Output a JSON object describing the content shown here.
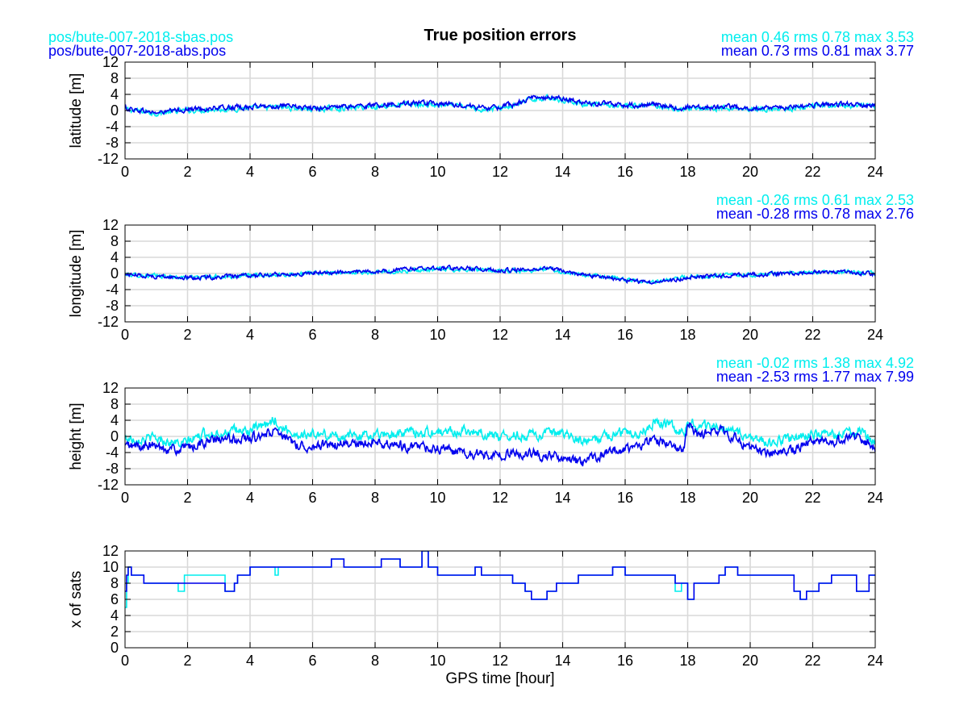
{
  "header": {
    "title": "True position errors",
    "file_sbas": "pos/bute-007-2018-sbas.pos",
    "file_abs": "pos/bute-007-2018-abs.pos"
  },
  "colors": {
    "sbas": "#00eeee",
    "abs": "#0000ee",
    "grid": "#d9d9d9",
    "axis": "#000000"
  },
  "chart_data": [
    {
      "type": "line",
      "ylabel": "latitude [m]",
      "xlim": [
        0,
        24
      ],
      "ylim": [
        -12,
        12
      ],
      "xticks": [
        0,
        2,
        4,
        6,
        8,
        10,
        12,
        14,
        16,
        18,
        20,
        22,
        24
      ],
      "yticks": [
        -12,
        -8,
        -4,
        0,
        4,
        8,
        12
      ],
      "grid": true,
      "stats": [
        {
          "text": "mean 0.46 rms 0.78 max 3.53",
          "series": "sbas"
        },
        {
          "text": "mean 0.73 rms 0.81 max 3.77",
          "series": "abs"
        }
      ],
      "series": [
        {
          "key": "sbas",
          "noise": 0.5,
          "x": [
            0,
            0.5,
            1,
            2,
            3,
            4,
            5,
            6,
            7,
            8,
            9,
            10,
            11,
            11.5,
            12,
            12.5,
            13,
            13.5,
            14,
            14.5,
            15,
            16,
            17,
            17.8,
            18,
            19,
            20,
            21,
            21.5,
            22,
            23,
            24
          ],
          "y": [
            0.3,
            -0.2,
            -0.7,
            0,
            0.3,
            0.6,
            0.8,
            0.3,
            0.6,
            1.0,
            1.5,
            1.3,
            0.9,
            0.2,
            0.6,
            1.3,
            2.8,
            3.2,
            2.7,
            1.8,
            1.4,
            1.0,
            1.3,
            0.2,
            0.6,
            0.5,
            0.5,
            0.2,
            0.6,
            1.0,
            1.2,
            1.1
          ]
        },
        {
          "key": "abs",
          "noise": 0.5,
          "x": [
            0,
            0.5,
            1,
            2,
            3,
            4,
            5,
            6,
            7,
            8,
            9,
            10,
            11,
            11.5,
            12,
            12.5,
            13,
            13.5,
            14,
            14.5,
            15,
            16,
            17,
            17.8,
            18,
            19,
            20,
            21,
            21.5,
            22,
            23,
            24
          ],
          "y": [
            0.6,
            0.0,
            -0.6,
            0.3,
            0.6,
            0.9,
            1.1,
            0.6,
            0.9,
            1.3,
            1.8,
            1.6,
            1.2,
            0.5,
            0.9,
            1.6,
            3.1,
            3.5,
            3.0,
            2.1,
            1.7,
            1.3,
            1.6,
            0.5,
            0.9,
            0.8,
            0.8,
            0.5,
            0.9,
            1.3,
            1.5,
            1.3
          ]
        }
      ]
    },
    {
      "type": "line",
      "ylabel": "longitude [m]",
      "xlim": [
        0,
        24
      ],
      "ylim": [
        -12,
        12
      ],
      "xticks": [
        0,
        2,
        4,
        6,
        8,
        10,
        12,
        14,
        16,
        18,
        20,
        22,
        24
      ],
      "yticks": [
        -12,
        -8,
        -4,
        0,
        4,
        8,
        12
      ],
      "grid": true,
      "stats": [
        {
          "text": "mean -0.26 rms 0.61 max 2.53",
          "series": "sbas"
        },
        {
          "text": "mean -0.28 rms 0.78 max 2.76",
          "series": "abs"
        }
      ],
      "series": [
        {
          "key": "sbas",
          "noise": 0.4,
          "x": [
            0,
            1,
            2,
            3,
            4,
            5,
            6,
            7,
            8,
            9,
            10,
            11,
            12,
            13,
            13.5,
            14,
            15,
            16,
            16.8,
            17.5,
            18,
            19,
            20,
            21,
            22,
            23,
            24
          ],
          "y": [
            -0.3,
            -0.6,
            -1.0,
            -0.8,
            -0.5,
            -0.2,
            0.0,
            0.2,
            0.2,
            0.6,
            1.0,
            1.0,
            0.6,
            0.8,
            1.2,
            0.3,
            -0.6,
            -1.5,
            -2.0,
            -1.6,
            -0.8,
            -0.5,
            -0.3,
            0.0,
            0.2,
            0.4,
            0.0
          ]
        },
        {
          "key": "abs",
          "noise": 0.4,
          "x": [
            0,
            1,
            2,
            3,
            4,
            5,
            6,
            7,
            8,
            9,
            10,
            11,
            12,
            13,
            13.5,
            14,
            15,
            16,
            16.8,
            17.5,
            18,
            19,
            20,
            21,
            22,
            23,
            24
          ],
          "y": [
            -0.2,
            -0.7,
            -1.1,
            -0.9,
            -0.6,
            -0.2,
            0.1,
            0.3,
            0.5,
            1.0,
            1.4,
            1.3,
            0.8,
            1.0,
            1.5,
            0.5,
            -0.6,
            -1.7,
            -2.3,
            -1.8,
            -0.9,
            -0.6,
            -0.3,
            0.0,
            0.2,
            0.5,
            -0.2
          ]
        }
      ]
    },
    {
      "type": "line",
      "ylabel": "height [m]",
      "xlim": [
        0,
        24
      ],
      "ylim": [
        -12,
        12
      ],
      "xticks": [
        0,
        2,
        4,
        6,
        8,
        10,
        12,
        14,
        16,
        18,
        20,
        22,
        24
      ],
      "yticks": [
        -12,
        -8,
        -4,
        0,
        4,
        8,
        12
      ],
      "grid": true,
      "stats": [
        {
          "text": "mean -0.02 rms 1.38 max 4.92",
          "series": "sbas"
        },
        {
          "text": "mean -2.53 rms 1.77 max 7.99",
          "series": "abs"
        }
      ],
      "series": [
        {
          "key": "sbas",
          "noise": 1.0,
          "x": [
            0,
            1,
            1.8,
            2.5,
            3,
            4,
            4.5,
            4.8,
            4.9,
            5.5,
            6,
            7,
            8,
            9,
            10,
            11,
            12,
            13,
            14,
            14.7,
            15,
            15.5,
            16,
            16.5,
            17,
            17.5,
            17.9,
            18,
            18.3,
            19,
            19.5,
            20,
            20.5,
            21,
            21.5,
            22,
            23,
            23.5,
            24
          ],
          "y": [
            -0.5,
            -0.5,
            -2.0,
            0.5,
            1.0,
            1.5,
            2.5,
            4.5,
            2.5,
            0.5,
            0.5,
            0.0,
            0.5,
            1.0,
            1.0,
            1.5,
            0.0,
            0.5,
            0.5,
            -1.5,
            -1.0,
            0.5,
            1.0,
            1.0,
            4.0,
            2.5,
            1.0,
            4.0,
            2.5,
            2.5,
            1.0,
            -0.5,
            -1.5,
            -1.0,
            -0.5,
            0.5,
            0.5,
            1.5,
            -2.0
          ]
        },
        {
          "key": "abs",
          "noise": 1.0,
          "x": [
            0,
            1,
            1.8,
            2.5,
            3,
            4,
            4.5,
            4.8,
            4.9,
            5.5,
            6,
            7,
            8,
            9,
            10,
            11,
            12,
            13,
            14,
            14.7,
            15,
            15.5,
            16,
            16.5,
            17,
            17.5,
            17.9,
            18,
            18.3,
            19,
            19.5,
            20,
            20.5,
            21,
            21.5,
            22,
            23,
            23.5,
            24
          ],
          "y": [
            -2.5,
            -2.5,
            -3.5,
            -1.5,
            -1.0,
            -0.5,
            0.0,
            2.0,
            0.0,
            -2.0,
            -2.5,
            -2.0,
            -1.5,
            -2.5,
            -3.0,
            -4.5,
            -4.5,
            -4.0,
            -5.5,
            -6.5,
            -5.5,
            -4.0,
            -3.0,
            -2.0,
            -1.0,
            -1.5,
            -3.5,
            3.0,
            0.5,
            1.5,
            -0.5,
            -2.5,
            -4.0,
            -3.5,
            -3.0,
            -1.0,
            -1.0,
            -0.5,
            -3.0
          ]
        }
      ]
    },
    {
      "type": "line",
      "ylabel": "x of sats",
      "xlabel": "GPS time [hour]",
      "xlim": [
        0,
        24
      ],
      "ylim": [
        0,
        12
      ],
      "xticks": [
        0,
        2,
        4,
        6,
        8,
        10,
        12,
        14,
        16,
        18,
        20,
        22,
        24
      ],
      "yticks": [
        0,
        2,
        4,
        6,
        8,
        10,
        12
      ],
      "grid": true,
      "step": true,
      "stats": [],
      "series": [
        {
          "key": "sbas",
          "noise": 0,
          "x": [
            0,
            0.05,
            0.1,
            0.2,
            0.6,
            1.7,
            1.9,
            3.2,
            3.5,
            3.6,
            4.0,
            4.8,
            4.9,
            5.0,
            6.6,
            7.0,
            7.2,
            8.2,
            8.5,
            8.8,
            9.5,
            9.7,
            10.0,
            11.2,
            11.4,
            12.4,
            12.8,
            13.0,
            13.5,
            13.8,
            14.2,
            14.5,
            15.6,
            16.0,
            16.2,
            17.6,
            17.8,
            18.0,
            18.2,
            18.5,
            19.0,
            19.2,
            19.6,
            20.0,
            21.0,
            21.4,
            21.6,
            21.8,
            22.2,
            22.6,
            23.0,
            23.4,
            23.8,
            24
          ],
          "y": [
            5,
            8,
            10,
            9,
            8,
            7,
            9,
            7,
            8,
            9,
            10,
            9,
            10,
            10,
            11,
            10,
            10,
            11,
            11,
            10,
            12,
            10,
            9,
            10,
            9,
            8,
            7,
            6,
            7,
            8,
            8,
            9,
            10,
            9,
            9,
            7,
            8,
            6,
            8,
            8,
            9,
            10,
            9,
            9,
            9,
            7,
            6,
            7,
            8,
            9,
            9,
            7,
            9,
            9
          ]
        },
        {
          "key": "abs",
          "noise": 0,
          "x": [
            0,
            0.05,
            0.1,
            0.2,
            0.6,
            1.7,
            1.9,
            3.2,
            3.5,
            3.6,
            4.0,
            4.8,
            4.9,
            5.0,
            6.6,
            7.0,
            7.2,
            8.2,
            8.5,
            8.8,
            9.5,
            9.7,
            10.0,
            11.2,
            11.4,
            12.4,
            12.8,
            13.0,
            13.5,
            13.8,
            14.2,
            14.5,
            15.6,
            16.0,
            16.2,
            17.6,
            17.8,
            18.0,
            18.2,
            18.5,
            19.0,
            19.2,
            19.6,
            20.0,
            21.0,
            21.4,
            21.6,
            21.8,
            22.2,
            22.6,
            23.0,
            23.4,
            23.8,
            24
          ],
          "y": [
            7,
            9,
            10,
            9,
            8,
            8,
            8,
            7,
            8,
            9,
            10,
            10,
            10,
            10,
            11,
            10,
            10,
            11,
            11,
            10,
            12,
            10,
            9,
            10,
            9,
            8,
            7,
            6,
            7,
            8,
            8,
            9,
            10,
            9,
            9,
            8,
            8,
            6,
            8,
            8,
            9,
            10,
            9,
            9,
            9,
            7,
            6,
            7,
            8,
            9,
            9,
            7,
            9,
            9
          ]
        }
      ]
    }
  ]
}
